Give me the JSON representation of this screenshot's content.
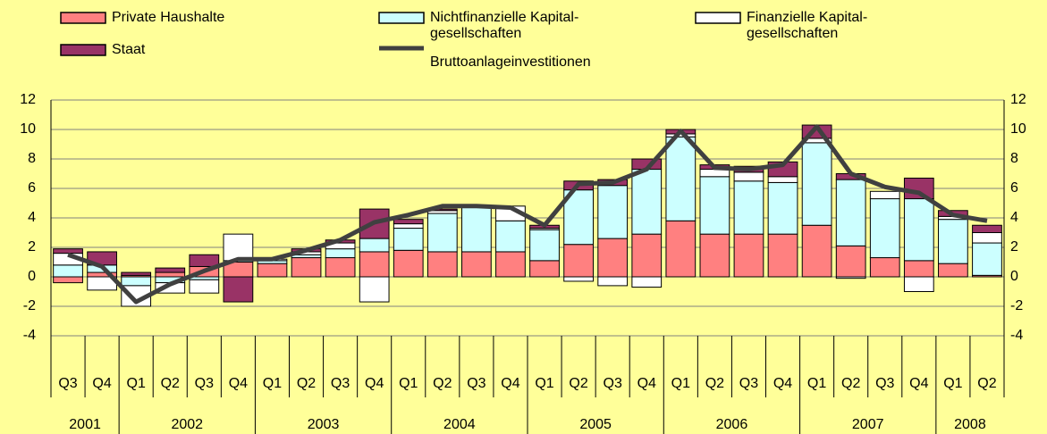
{
  "chart_data": {
    "type": "stacked-bar-line",
    "categories": [
      "Q3",
      "Q4",
      "Q1",
      "Q2",
      "Q3",
      "Q4",
      "Q1",
      "Q2",
      "Q3",
      "Q4",
      "Q1",
      "Q2",
      "Q3",
      "Q4",
      "Q1",
      "Q2",
      "Q3",
      "Q4",
      "Q1",
      "Q2",
      "Q3",
      "Q4",
      "Q1",
      "Q2",
      "Q3",
      "Q4",
      "Q1",
      "Q2"
    ],
    "years": [
      "2001",
      "2002",
      "2003",
      "2004",
      "2005",
      "2006",
      "2007",
      "2008"
    ],
    "series": [
      {
        "name": "Private Haushalte",
        "kind": "bar",
        "color": "#ff8080",
        "values": [
          -0.4,
          0.3,
          0.1,
          0.3,
          0.7,
          1.0,
          0.9,
          1.3,
          1.3,
          1.7,
          1.8,
          1.7,
          1.7,
          1.7,
          1.1,
          2.2,
          2.6,
          2.9,
          3.8,
          2.9,
          2.9,
          2.9,
          3.5,
          2.1,
          1.3,
          1.1,
          0.9,
          0.1
        ]
      },
      {
        "name": "Nichtfinanzielle Kapital-\ngesellschaften",
        "kind": "bar",
        "color": "#ccffff",
        "values": [
          0.8,
          0.5,
          -0.6,
          -0.4,
          -0.2,
          0.1,
          0.2,
          0.2,
          0.6,
          0.9,
          1.5,
          2.6,
          3.0,
          2.1,
          2.1,
          3.7,
          3.6,
          4.4,
          5.7,
          3.9,
          3.6,
          3.5,
          5.6,
          4.5,
          4.0,
          4.2,
          3.0,
          2.2
        ]
      },
      {
        "name": "Finanzielle Kapital-\ngesellschaften",
        "kind": "bar",
        "color": "#ffffff",
        "values": [
          0.8,
          -0.9,
          -1.4,
          -0.7,
          -0.9,
          1.8,
          0.1,
          0.2,
          0.4,
          -1.7,
          0.3,
          0.2,
          0.1,
          1.0,
          0.1,
          -0.3,
          -0.6,
          -0.7,
          0.2,
          0.5,
          0.6,
          0.4,
          0.3,
          -0.1,
          0.5,
          -1.0,
          0.2,
          0.7
        ]
      },
      {
        "name": "Staat",
        "kind": "bar",
        "color": "#993366",
        "values": [
          0.3,
          0.9,
          0.2,
          0.3,
          0.8,
          -1.7,
          0.0,
          0.2,
          0.2,
          2.0,
          0.3,
          0.1,
          0.0,
          0.0,
          0.2,
          0.6,
          0.4,
          0.7,
          0.3,
          0.3,
          0.4,
          1.0,
          0.9,
          0.4,
          0.0,
          1.4,
          0.4,
          0.5
        ]
      },
      {
        "name": "Bruttoanlageinvestitionen",
        "kind": "line",
        "color": "#404040",
        "values": [
          1.5,
          0.7,
          -1.7,
          -0.5,
          0.4,
          1.2,
          1.2,
          1.8,
          2.5,
          3.7,
          4.2,
          4.8,
          4.8,
          4.7,
          3.5,
          6.3,
          6.4,
          7.3,
          9.9,
          7.4,
          7.3,
          7.6,
          10.2,
          7.0,
          6.1,
          5.7,
          4.2,
          3.8
        ]
      }
    ],
    "ylim": [
      -4,
      12
    ],
    "yticks": [
      -4,
      -2,
      0,
      2,
      4,
      6,
      8,
      10,
      12
    ],
    "grid": true
  }
}
